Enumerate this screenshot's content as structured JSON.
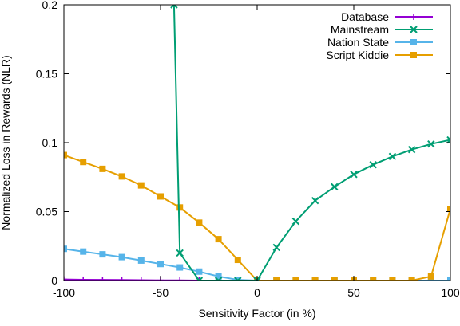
{
  "chart_data": {
    "type": "line",
    "xlabel": "Sensitivity Factor (in %)",
    "ylabel": "Normalized Loss in Rewards (NLR)",
    "xlim": [
      -100,
      100
    ],
    "ylim": [
      0,
      0.2
    ],
    "xticks": [
      -100,
      -50,
      0,
      50,
      100
    ],
    "yticks": [
      0,
      0.05,
      0.1,
      0.15,
      0.2
    ],
    "xtick_labels": [
      "-100",
      "-50",
      "0",
      "50",
      "100"
    ],
    "ytick_labels": [
      "0",
      "0.05",
      "0.1",
      "0.15",
      "0.2"
    ],
    "grid": false,
    "legend_position": "top-right",
    "series": [
      {
        "name": "Database",
        "color": "#9400d3",
        "marker": "plus",
        "x": [
          -100,
          -90,
          -80,
          -70,
          -60,
          -50,
          -40,
          -30,
          -20,
          -10,
          0,
          10,
          20,
          30,
          40,
          50,
          60,
          70,
          80,
          90,
          100
        ],
        "y": [
          0.0008,
          0.0006,
          0.0005,
          0.0004,
          0.0003,
          0.0002,
          0.0001,
          0,
          0,
          0,
          0,
          0,
          0,
          0,
          0,
          0,
          0,
          0,
          0,
          0,
          0
        ]
      },
      {
        "name": "Mainstream",
        "color": "#009e73",
        "marker": "x",
        "x": [
          -43,
          -40,
          -30,
          -20,
          -10,
          0,
          10,
          20,
          30,
          40,
          50,
          60,
          70,
          80,
          90,
          100
        ],
        "y": [
          0.2,
          0.02,
          0,
          0,
          0,
          0,
          0.024,
          0.043,
          0.058,
          0.068,
          0.077,
          0.084,
          0.09,
          0.095,
          0.099,
          0.102
        ]
      },
      {
        "name": "Nation State",
        "color": "#56b4e9",
        "marker": "square",
        "x": [
          -100,
          -90,
          -80,
          -70,
          -60,
          -50,
          -40,
          -30,
          -20,
          -10,
          0,
          10,
          20,
          30,
          40,
          50,
          60,
          70,
          80,
          90,
          100
        ],
        "y": [
          0.023,
          0.021,
          0.019,
          0.017,
          0.0145,
          0.012,
          0.0095,
          0.0065,
          0.003,
          0.0005,
          0,
          0,
          0,
          0,
          0,
          0,
          0,
          0,
          0,
          0,
          0
        ]
      },
      {
        "name": "Script Kiddie",
        "color": "#e69f00",
        "marker": "square",
        "x": [
          -100,
          -90,
          -80,
          -70,
          -60,
          -50,
          -40,
          -30,
          -20,
          -10,
          0,
          10,
          20,
          30,
          40,
          50,
          60,
          70,
          80,
          90,
          100
        ],
        "y": [
          0.091,
          0.086,
          0.081,
          0.0755,
          0.069,
          0.061,
          0.053,
          0.042,
          0.03,
          0.015,
          0,
          0,
          0,
          0,
          0,
          0,
          0,
          0,
          0,
          0.003,
          0.052
        ]
      }
    ]
  }
}
